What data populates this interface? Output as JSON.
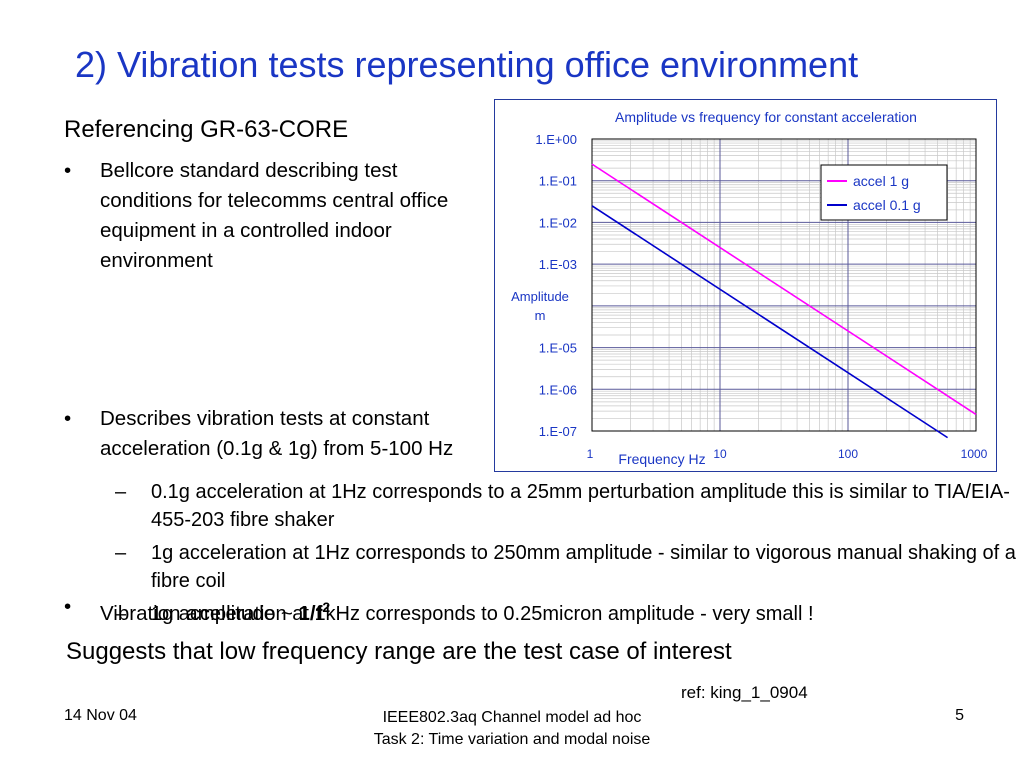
{
  "slide": {
    "title": "2) Vibration tests representing office environment",
    "reference_heading": "Referencing GR-63-CORE",
    "bullets": [
      {
        "marker": "•",
        "text": "Bellcore standard describing test conditions for telecomms central office equipment in a controlled indoor environment"
      },
      {
        "marker": "•",
        "text": "Describes vibration tests at constant acceleration (0.1g & 1g) from 5-100 Hz"
      },
      {
        "marker": "•",
        "text_prefix": "Vibration amplitude ~ ",
        "text_bold": "1/f",
        "text_sup": "2"
      }
    ],
    "sub_bullets": [
      {
        "marker": "–",
        "text": "0.1g acceleration at 1Hz corresponds to a 25mm perturbation amplitude this is similar to TIA/EIA-455-203 fibre shaker"
      },
      {
        "marker": "–",
        "text": "1g acceleration at 1Hz corresponds to 250mm amplitude - similar to vigorous manual shaking of a fibre coil"
      },
      {
        "marker": "–",
        "text": "1g acceleration at 1kHz corresponds to 0.25micron amplitude - very small !"
      }
    ],
    "conclusion": "Suggests that low frequency range are the test case of interest",
    "ref_note": "ref: king_1_0904",
    "footer": {
      "date": "14 Nov 04",
      "center_line1": "IEEE802.3aq Channel model ad hoc",
      "center_line2": "Task 2: Time variation and modal noise",
      "page": "5"
    },
    "colors": {
      "title": "#1a36c4",
      "chart_text": "#1a36c4",
      "series_1g": "#ff00ff",
      "series_01g": "#0000cc"
    }
  },
  "chart_data": {
    "type": "line",
    "title": "Amplitude vs frequency for constant acceleration",
    "xlabel": "Frequency Hz",
    "ylabel_lines": [
      "Amplitude",
      "m"
    ],
    "x_scale": "log",
    "y_scale": "log",
    "xlim": [
      1,
      1000
    ],
    "ylim": [
      1e-07,
      1
    ],
    "x_tick_labels": [
      {
        "value": 1,
        "label": "1"
      },
      {
        "value": 10,
        "label": "10"
      },
      {
        "value": 100,
        "label": "100"
      },
      {
        "value": 1000,
        "label": "1000"
      }
    ],
    "y_tick_labels": [
      {
        "value": 1,
        "label": "1.E+00"
      },
      {
        "value": 0.1,
        "label": "1.E-01"
      },
      {
        "value": 0.01,
        "label": "1.E-02"
      },
      {
        "value": 0.001,
        "label": "1.E-03"
      },
      {
        "value": 1e-05,
        "label": "1.E-05"
      },
      {
        "value": 1e-06,
        "label": "1.E-06"
      },
      {
        "value": 1e-07,
        "label": "1.E-07"
      }
    ],
    "grid": true,
    "legend_position": "top-right",
    "series": [
      {
        "name": "accel 1 g",
        "color": "#ff00ff",
        "x": [
          1,
          1000
        ],
        "y": [
          0.25,
          2.5e-07
        ]
      },
      {
        "name": "accel 0.1 g",
        "color": "#0000cc",
        "x": [
          1,
          600
        ],
        "y": [
          0.025,
          6.94e-08
        ]
      }
    ]
  }
}
